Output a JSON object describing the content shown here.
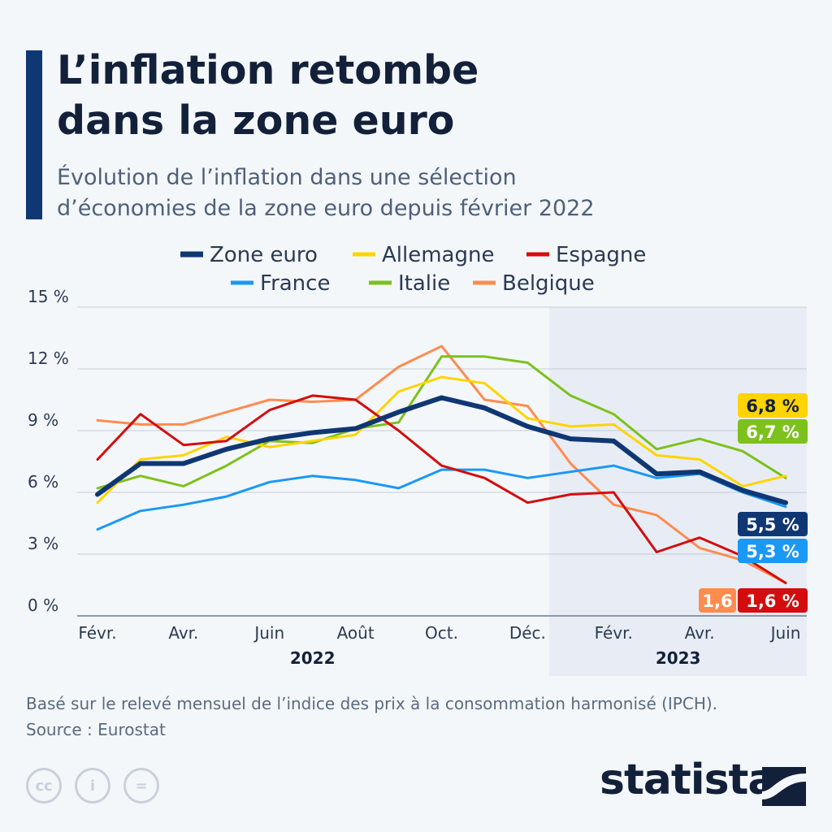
{
  "title_lines": [
    "L’inflation retombe",
    "dans la zone euro"
  ],
  "subtitle_lines": [
    "Évolution de l’inflation dans une sélection",
    "d’économies de la zone euro depuis février 2022"
  ],
  "note": "Basé sur le relevé mensuel de l’indice des prix à la consommation harmonisé (IPCH).",
  "source": "Source : Eurostat",
  "logo": "statista",
  "cc_icons": [
    "cc",
    "i",
    "="
  ],
  "chart_data": {
    "type": "line",
    "ylim": [
      0,
      15
    ],
    "yticks": [
      0,
      3,
      6,
      9,
      12,
      15
    ],
    "ytick_labels": [
      "0 %",
      "3 %",
      "6 %",
      "9 %",
      "12 %",
      "15 %"
    ],
    "x": [
      "Févr. 2022",
      "Mars 2022",
      "Avr. 2022",
      "Mai 2022",
      "Juin 2022",
      "Juil. 2022",
      "Août 2022",
      "Sept. 2022",
      "Oct. 2022",
      "Nov. 2022",
      "Déc. 2022",
      "Janv. 2023",
      "Févr. 2023",
      "Mars 2023",
      "Avr. 2023",
      "Mai 2023",
      "Juin 2023"
    ],
    "xtick_labels": [
      {
        "i": 0,
        "label": "Févr."
      },
      {
        "i": 2,
        "label": "Avr."
      },
      {
        "i": 4,
        "label": "Juin"
      },
      {
        "i": 6,
        "label": "Août"
      },
      {
        "i": 8,
        "label": "Oct."
      },
      {
        "i": 10,
        "label": "Déc."
      },
      {
        "i": 12,
        "label": "Févr."
      },
      {
        "i": 14,
        "label": "Avr."
      },
      {
        "i": 16,
        "label": "Juin"
      }
    ],
    "year_labels": [
      {
        "i": 5,
        "label": "2022"
      },
      {
        "i": 13.5,
        "label": "2023"
      }
    ],
    "highlight_from_index": 11,
    "series": [
      {
        "name": "Belgique",
        "color": "#ff8c4f",
        "width": 3,
        "values": [
          9.5,
          9.3,
          9.3,
          9.9,
          10.5,
          10.4,
          10.5,
          12.1,
          13.1,
          10.5,
          10.2,
          7.4,
          5.4,
          4.9,
          3.3,
          2.7,
          1.6
        ],
        "end_label": "1,6"
      },
      {
        "name": "France",
        "color": "#1a98f5",
        "width": 3,
        "values": [
          4.2,
          5.1,
          5.4,
          5.8,
          6.5,
          6.8,
          6.6,
          6.2,
          7.1,
          7.1,
          6.7,
          7.0,
          7.3,
          6.7,
          6.9,
          6.0,
          5.3
        ],
        "end_label": "5,3 %"
      },
      {
        "name": "Italie",
        "color": "#7dc11c",
        "width": 3,
        "values": [
          6.2,
          6.8,
          6.3,
          7.3,
          8.5,
          8.4,
          9.1,
          9.4,
          12.6,
          12.6,
          12.3,
          10.7,
          9.8,
          8.1,
          8.6,
          8.0,
          6.7
        ],
        "end_label": "6,7 %"
      },
      {
        "name": "Allemagne",
        "color": "#ffd400",
        "width": 3,
        "values": [
          5.5,
          7.6,
          7.8,
          8.7,
          8.2,
          8.5,
          8.8,
          10.9,
          11.6,
          11.3,
          9.6,
          9.2,
          9.3,
          7.8,
          7.6,
          6.3,
          6.8
        ],
        "end_label": "6,8 %"
      },
      {
        "name": "Espagne",
        "color": "#d30d0d",
        "width": 3,
        "values": [
          7.6,
          9.8,
          8.3,
          8.5,
          10.0,
          10.7,
          10.5,
          9.0,
          7.3,
          6.7,
          5.5,
          5.9,
          6.0,
          3.1,
          3.8,
          2.9,
          1.6
        ],
        "end_label": "1,6 %"
      },
      {
        "name": "Zone euro",
        "color": "#0f3773",
        "width": 6,
        "values": [
          5.9,
          7.4,
          7.4,
          8.1,
          8.6,
          8.9,
          9.1,
          9.9,
          10.6,
          10.1,
          9.2,
          8.6,
          8.5,
          6.9,
          7.0,
          6.1,
          5.5
        ],
        "end_label": "5,5 %"
      }
    ],
    "legend_order": [
      "Zone euro",
      "Allemagne",
      "Espagne",
      "France",
      "Italie",
      "Belgique"
    ],
    "legend_placement": "top"
  }
}
